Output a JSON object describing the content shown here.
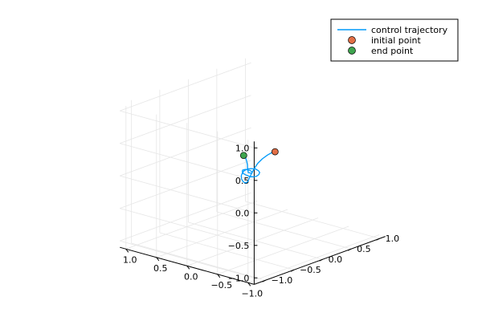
{
  "chart_data": {
    "type": "line3d",
    "title": "",
    "xlabel": "",
    "ylabel": "",
    "zlabel": "",
    "xlim": [
      -1.1,
      1.1
    ],
    "ylim": [
      -1.2,
      1.1
    ],
    "zlim": [
      -1.1,
      1.1
    ],
    "x_ticks": [
      -1.0,
      -0.5,
      0.0,
      0.5,
      1.0
    ],
    "y_ticks": [
      -1.0,
      -0.5,
      0.0,
      0.5,
      1.0
    ],
    "z_ticks": [
      -1.0,
      -0.5,
      0.0,
      0.5,
      1.0
    ],
    "x_tick_labels": [
      "−1.0",
      "−0.5",
      "0.0",
      "0.5",
      "1.0"
    ],
    "y_tick_labels": [
      "−1.0",
      "−0.5",
      "0.0",
      "0.5",
      "1.0"
    ],
    "z_tick_labels": [
      "−1.0",
      "−0.5",
      "0.0",
      "0.5",
      "1.0"
    ],
    "grid": true,
    "legend_position": "top-right",
    "series": [
      {
        "name": "control trajectory",
        "kind": "line",
        "color": "#009AFA",
        "points": [
          [
            0.1,
            0.45,
            0.1
          ],
          [
            0.11,
            0.41,
            0.1
          ],
          [
            0.12,
            0.34,
            0.08
          ],
          [
            0.12,
            0.25,
            0.05
          ],
          [
            0.1,
            0.15,
            0.02
          ],
          [
            0.06,
            0.05,
            -0.01
          ],
          [
            0.02,
            -0.03,
            -0.03
          ],
          [
            -0.03,
            -0.12,
            -0.05
          ],
          [
            -0.08,
            -0.2,
            -0.06
          ],
          [
            -0.12,
            -0.26,
            -0.07
          ],
          [
            -0.14,
            -0.31,
            -0.07
          ],
          [
            -0.14,
            -0.34,
            -0.06
          ],
          [
            -0.12,
            -0.35,
            -0.04
          ],
          [
            -0.08,
            -0.33,
            -0.02
          ],
          [
            -0.03,
            -0.28,
            0.0
          ],
          [
            0.01,
            -0.22,
            0.01
          ],
          [
            0.04,
            -0.15,
            0.02
          ],
          [
            0.05,
            -0.08,
            0.02
          ],
          [
            0.04,
            -0.03,
            0.01
          ],
          [
            0.01,
            0.01,
            0.0
          ],
          [
            -0.03,
            0.02,
            -0.02
          ],
          [
            -0.07,
            0.0,
            -0.03
          ],
          [
            -0.1,
            -0.05,
            -0.04
          ],
          [
            -0.12,
            -0.11,
            -0.04
          ],
          [
            -0.12,
            -0.17,
            -0.03
          ],
          [
            -0.1,
            -0.22,
            -0.01
          ],
          [
            -0.06,
            -0.24,
            0.01
          ],
          [
            -0.02,
            -0.24,
            0.02
          ],
          [
            0.02,
            -0.21,
            0.03
          ],
          [
            0.05,
            -0.17,
            0.03
          ],
          [
            0.06,
            -0.12,
            0.02
          ],
          [
            0.05,
            -0.09,
            0.01
          ],
          [
            0.03,
            -0.07,
            0.0
          ],
          [
            0.0,
            -0.07,
            -0.01
          ],
          [
            -0.02,
            -0.08,
            -0.01
          ],
          [
            -0.04,
            -0.1,
            -0.01
          ],
          [
            -0.05,
            -0.12,
            -0.01
          ],
          [
            -0.04,
            -0.14,
            0.0
          ],
          [
            -0.03,
            -0.16,
            0.01
          ],
          [
            -0.02,
            -0.15,
            0.02
          ],
          [
            0.0,
            -0.14,
            0.05
          ],
          [
            0.02,
            -0.12,
            0.1
          ],
          [
            0.04,
            -0.11,
            0.15
          ],
          [
            0.07,
            -0.1,
            0.2
          ],
          [
            0.1,
            -0.1,
            0.22
          ]
        ]
      },
      {
        "name": "initial point",
        "kind": "marker",
        "color": "#E26F46",
        "points": [
          [
            0.1,
            0.45,
            0.1
          ]
        ]
      },
      {
        "name": "end point",
        "kind": "marker",
        "color": "#3EA44E",
        "points": [
          [
            0.1,
            -0.1,
            0.22
          ]
        ]
      }
    ]
  }
}
